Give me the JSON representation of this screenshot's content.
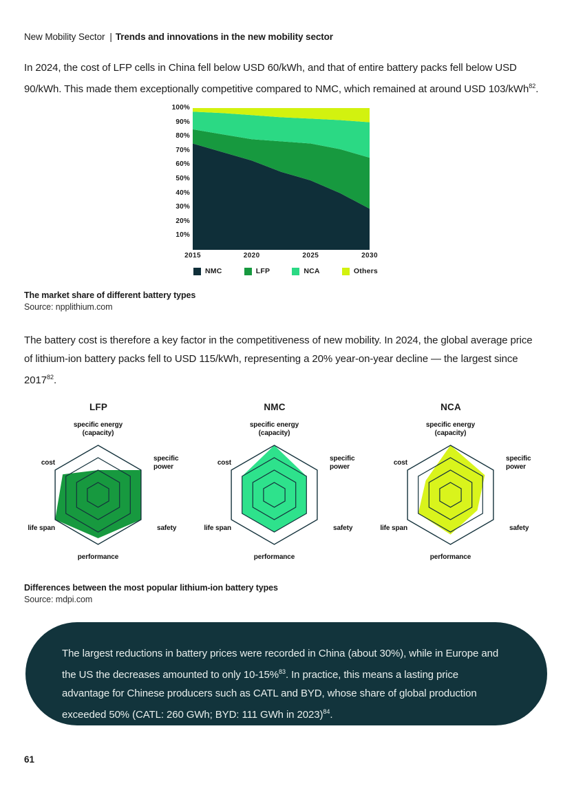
{
  "header": {
    "section": "New Mobility Sector",
    "divider": "|",
    "title": "Trends and innovations in the new mobility sector"
  },
  "intro_paragraph": {
    "text": "In 2024, the cost of LFP cells in China fell below USD 60/kWh, and that of entire battery packs fell below USD 90/kWh. This made them exceptionally competitive compared to NMC, which remained at around USD 103/kWh",
    "footnote": "82",
    "after": "."
  },
  "area_caption": {
    "title": "The market share of different battery types",
    "source": "Source: npplithium.com"
  },
  "battery_cost_paragraph": {
    "text": "The battery cost is therefore a key factor in the competitiveness of new mobility. In 2024, the global average price of lithium-ion battery packs fell to USD 115/kWh, representing a 20% year-on-year decline — the largest since 2017",
    "footnote": "82",
    "after": "."
  },
  "radar_caption": {
    "title": "Differences between the most popular lithium-ion battery types",
    "source": "Source: mdpi.com"
  },
  "callout": {
    "part1": "The largest reductions in battery prices were recorded in China (about 30%), while in Europe and the US the decreases amounted to only 10-15%",
    "footnote1": "83",
    "part2": ". In practice, this means a lasting price advantage for Chinese producers such as CATL and BYD, whose share of global production exceeded 50% (CATL: 260 GWh; BYD: 111 GWh in 2023)",
    "footnote2": "84",
    "part3": "."
  },
  "radar_labels": {
    "energy_line1": "specific energy",
    "energy_line2": "(capacity)",
    "power_line1": "specific",
    "power_line2": "power",
    "safety": "safety",
    "performance": "performance",
    "life_span": "life span",
    "cost": "cost"
  },
  "page_number": "61",
  "colors": {
    "dark_navy": "#0f2f39",
    "grid_line": "#14323c",
    "callout_bg": "#12343c",
    "callout_text": "#e9efed"
  },
  "chart_data": [
    {
      "type": "area",
      "stacked": true,
      "title": "The market share of different battery types",
      "unit": "%",
      "ylim": [
        0,
        100
      ],
      "x": [
        2015,
        2017.5,
        2020,
        2022.5,
        2025,
        2027.5,
        2030
      ],
      "x_ticks": [
        "2015",
        "2020",
        "2025",
        "2030"
      ],
      "y_ticks": [
        "100%",
        "90%",
        "80%",
        "70%",
        "60%",
        "50%",
        "40%",
        "30%",
        "20%",
        "10%"
      ],
      "legend_position": "bottom",
      "series": [
        {
          "name": "NMC",
          "color": "#0f2f39",
          "values": [
            75,
            69,
            63,
            55,
            49,
            40,
            29
          ]
        },
        {
          "name": "LFP",
          "color": "#17993f",
          "values": [
            10,
            12.5,
            15,
            21.5,
            26,
            31,
            36
          ]
        },
        {
          "name": "NCA",
          "color": "#2bd984",
          "values": [
            12.5,
            15,
            17,
            17,
            17.5,
            20.5,
            25
          ]
        },
        {
          "name": "Others",
          "color": "#d2f20f",
          "values": [
            2.5,
            3.5,
            5,
            6.5,
            7.5,
            8.5,
            10
          ]
        }
      ]
    },
    {
      "type": "radar",
      "max": 4,
      "rings": 4,
      "grid_shape": "hexagon",
      "axes": [
        "specific energy (capacity)",
        "specific power",
        "safety",
        "performance",
        "life span",
        "cost"
      ],
      "charts": [
        {
          "name": "LFP",
          "color": "#17993f",
          "values": [
            2,
            4,
            4,
            3.5,
            4,
            3.3
          ]
        },
        {
          "name": "NMC",
          "color": "#2ee28c",
          "values": [
            4,
            3,
            3,
            3,
            3,
            3
          ]
        },
        {
          "name": "NCA",
          "color": "#d9f41c",
          "values": [
            4,
            3.2,
            2.5,
            3.2,
            3,
            2.3
          ]
        }
      ]
    }
  ]
}
